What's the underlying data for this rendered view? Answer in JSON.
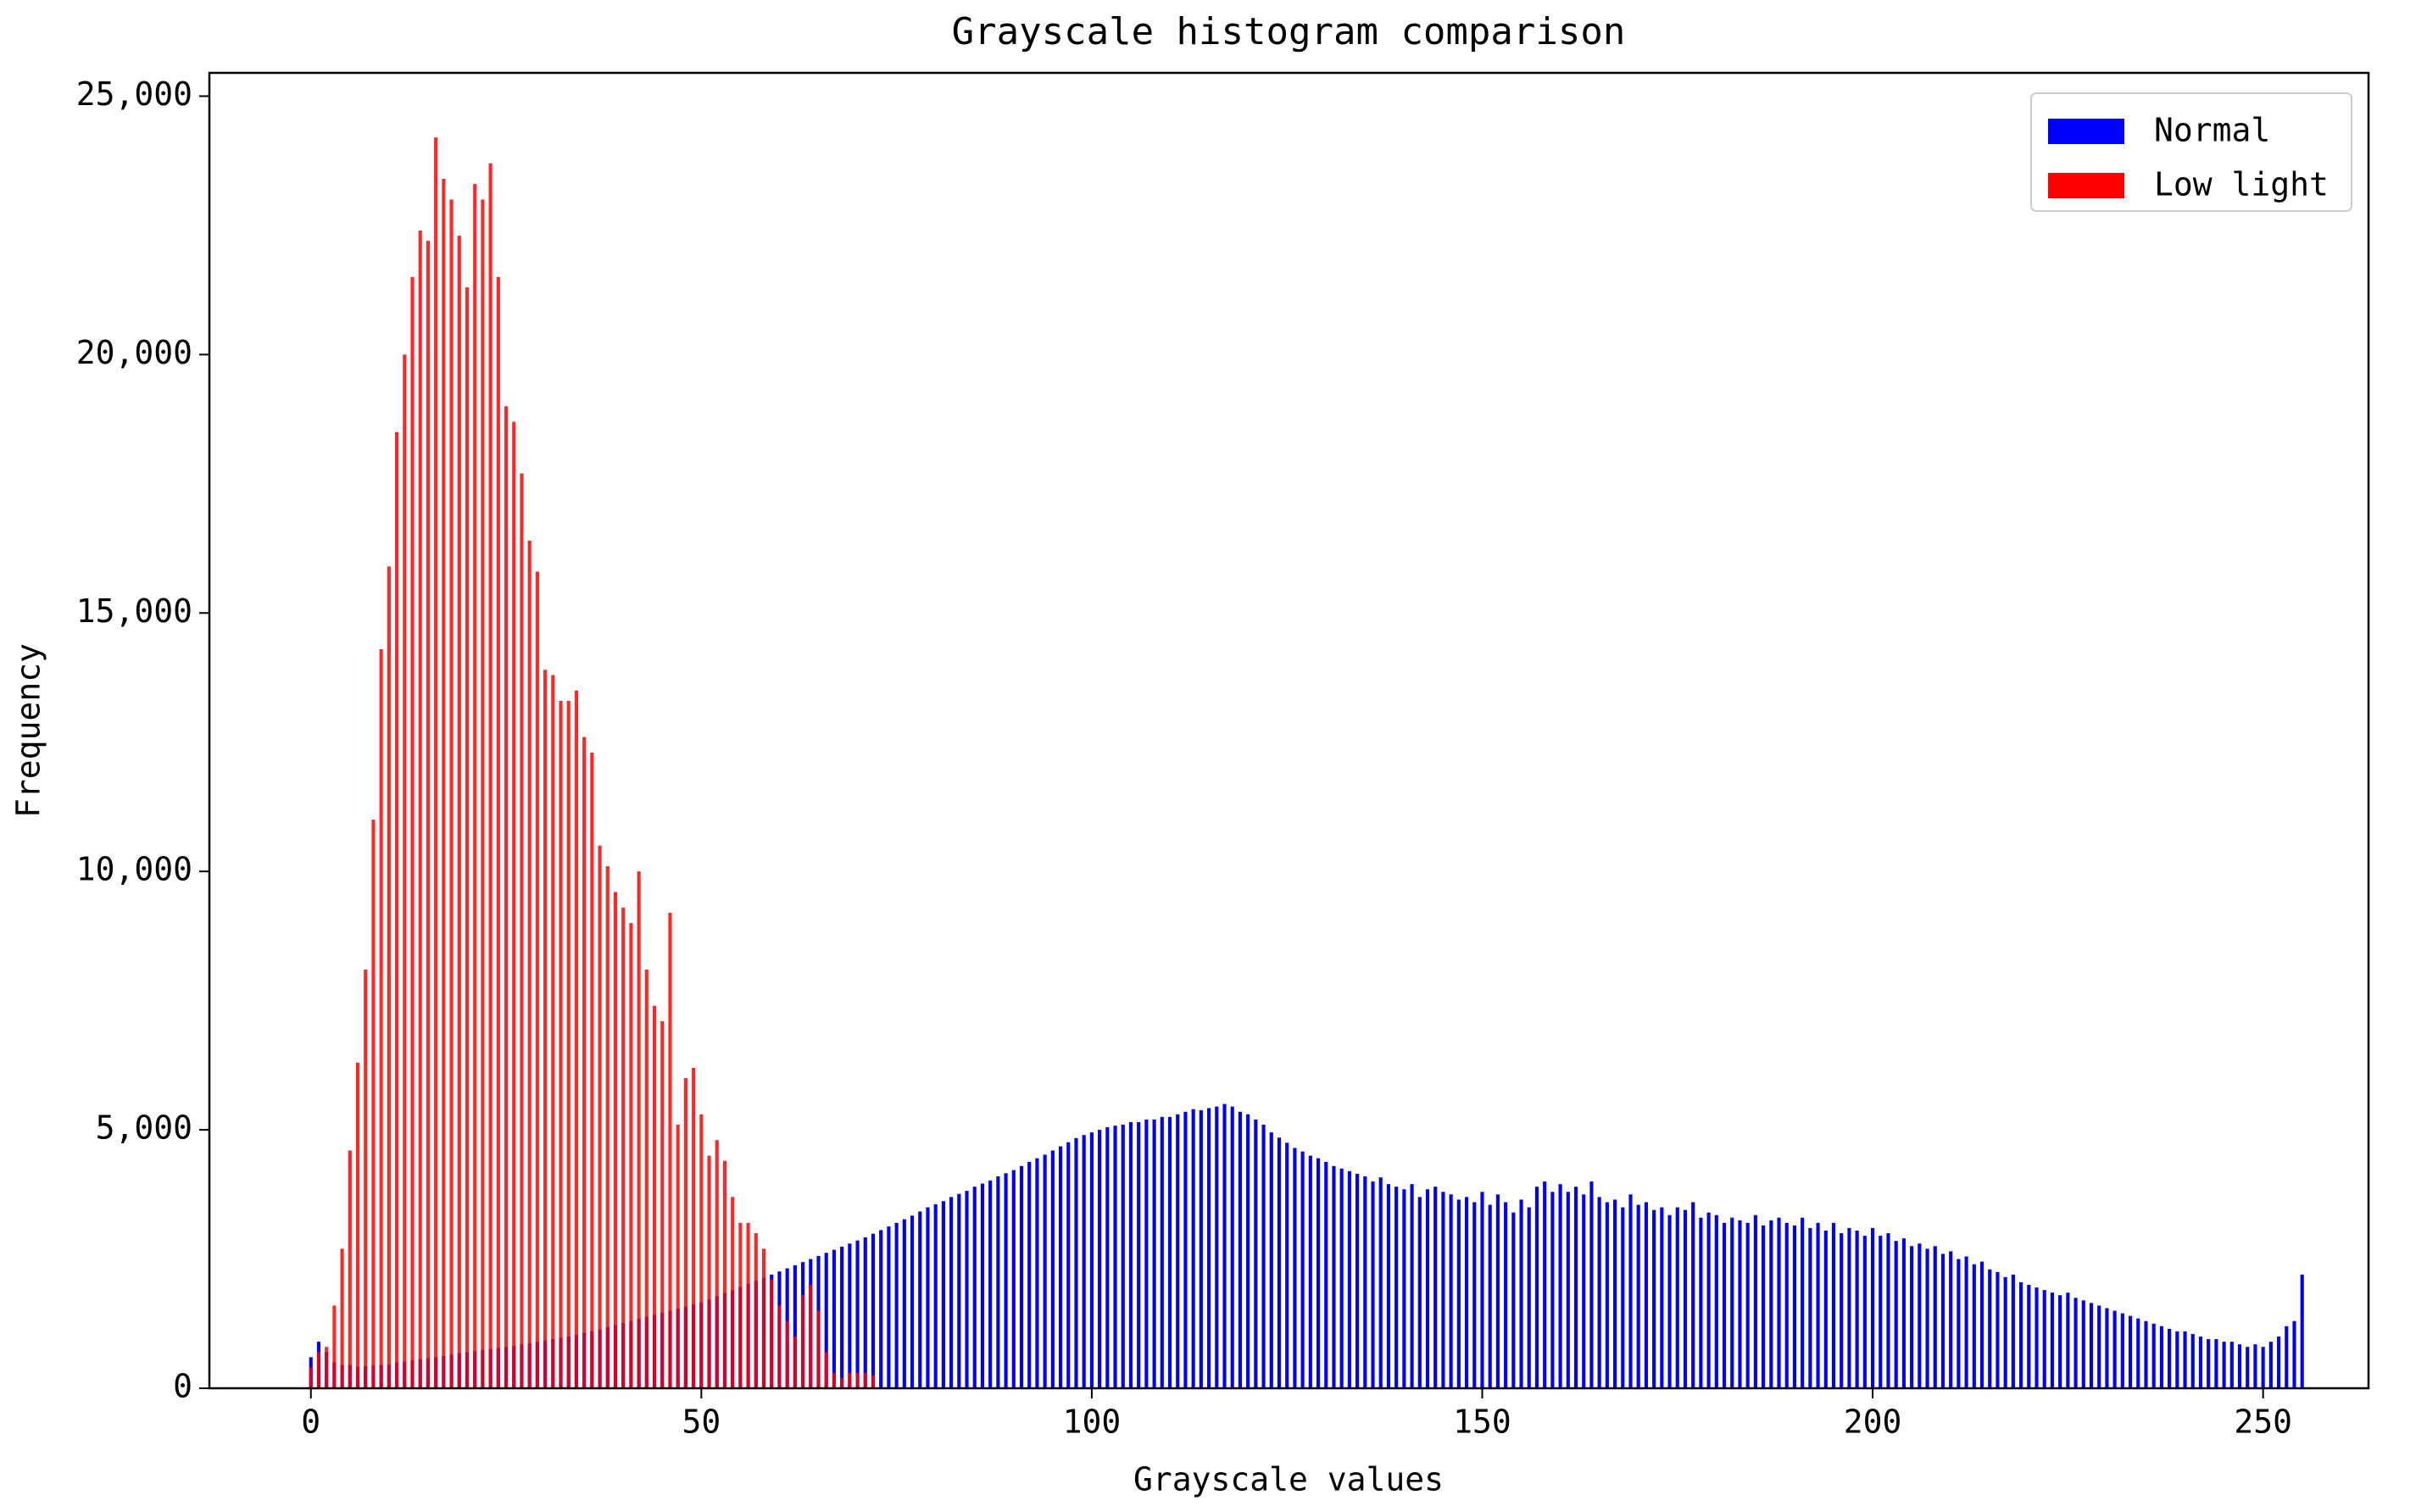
{
  "chart_data": {
    "type": "bar",
    "title": "Grayscale histogram comparison",
    "x_label": "Grayscale values",
    "y_label": "Frequency",
    "x": [
      0,
      1,
      2,
      3,
      4,
      5,
      6,
      7,
      8,
      9,
      10,
      11,
      12,
      13,
      14,
      15,
      16,
      17,
      18,
      19,
      20,
      21,
      22,
      23,
      24,
      25,
      26,
      27,
      28,
      29,
      30,
      31,
      32,
      33,
      34,
      35,
      36,
      37,
      38,
      39,
      40,
      41,
      42,
      43,
      44,
      45,
      46,
      47,
      48,
      49,
      50,
      51,
      52,
      53,
      54,
      55,
      56,
      57,
      58,
      59,
      60,
      61,
      62,
      63,
      64,
      65,
      66,
      67,
      68,
      69,
      70,
      71,
      72,
      73,
      74,
      75,
      76,
      77,
      78,
      79,
      80,
      81,
      82,
      83,
      84,
      85,
      86,
      87,
      88,
      89,
      90,
      91,
      92,
      93,
      94,
      95,
      96,
      97,
      98,
      99,
      100,
      101,
      102,
      103,
      104,
      105,
      106,
      107,
      108,
      109,
      110,
      111,
      112,
      113,
      114,
      115,
      116,
      117,
      118,
      119,
      120,
      121,
      122,
      123,
      124,
      125,
      126,
      127,
      128,
      129,
      130,
      131,
      132,
      133,
      134,
      135,
      136,
      137,
      138,
      139,
      140,
      141,
      142,
      143,
      144,
      145,
      146,
      147,
      148,
      149,
      150,
      151,
      152,
      153,
      154,
      155,
      156,
      157,
      158,
      159,
      160,
      161,
      162,
      163,
      164,
      165,
      166,
      167,
      168,
      169,
      170,
      171,
      172,
      173,
      174,
      175,
      176,
      177,
      178,
      179,
      180,
      181,
      182,
      183,
      184,
      185,
      186,
      187,
      188,
      189,
      190,
      191,
      192,
      193,
      194,
      195,
      196,
      197,
      198,
      199,
      200,
      201,
      202,
      203,
      204,
      205,
      206,
      207,
      208,
      209,
      210,
      211,
      212,
      213,
      214,
      215,
      216,
      217,
      218,
      219,
      220,
      221,
      222,
      223,
      224,
      225,
      226,
      227,
      228,
      229,
      230,
      231,
      232,
      233,
      234,
      235,
      236,
      237,
      238,
      239,
      240,
      241,
      242,
      243,
      244,
      245,
      246,
      247,
      248,
      249,
      250,
      251,
      252,
      253,
      254,
      255
    ],
    "series": [
      {
        "name": "Normal",
        "color": "#0000ff",
        "values": [
          600,
          900,
          700,
          500,
          450,
          450,
          420,
          430,
          440,
          450,
          460,
          500,
          520,
          540,
          560,
          580,
          600,
          620,
          650,
          680,
          700,
          720,
          740,
          760,
          780,
          800,
          820,
          850,
          870,
          900,
          920,
          950,
          980,
          1000,
          1030,
          1070,
          1100,
          1140,
          1180,
          1220,
          1260,
          1300,
          1340,
          1380,
          1420,
          1460,
          1500,
          1540,
          1580,
          1620,
          1660,
          1720,
          1780,
          1840,
          1900,
          1960,
          2020,
          2080,
          2140,
          2200,
          2260,
          2320,
          2380,
          2440,
          2500,
          2560,
          2620,
          2680,
          2740,
          2800,
          2860,
          2920,
          2990,
          3060,
          3130,
          3200,
          3270,
          3340,
          3420,
          3500,
          3560,
          3620,
          3700,
          3760,
          3820,
          3900,
          3960,
          4020,
          4100,
          4160,
          4220,
          4300,
          4380,
          4450,
          4520,
          4600,
          4680,
          4760,
          4840,
          4900,
          4950,
          5000,
          5050,
          5080,
          5100,
          5150,
          5150,
          5200,
          5200,
          5250,
          5250,
          5300,
          5350,
          5400,
          5380,
          5420,
          5450,
          5500,
          5450,
          5350,
          5300,
          5200,
          5100,
          4950,
          4850,
          4750,
          4650,
          4580,
          4500,
          4450,
          4380,
          4300,
          4250,
          4200,
          4150,
          4100,
          4000,
          4080,
          3950,
          3900,
          3850,
          3950,
          3700,
          3850,
          3900,
          3800,
          3750,
          3650,
          3700,
          3600,
          3800,
          3550,
          3750,
          3600,
          3400,
          3650,
          3500,
          3900,
          4000,
          3800,
          3950,
          3800,
          3900,
          3750,
          4000,
          3700,
          3600,
          3650,
          3500,
          3750,
          3550,
          3600,
          3450,
          3500,
          3350,
          3500,
          3450,
          3600,
          3300,
          3400,
          3350,
          3200,
          3300,
          3250,
          3200,
          3350,
          3150,
          3250,
          3300,
          3200,
          3150,
          3300,
          3100,
          3200,
          3050,
          3200,
          3000,
          3100,
          3050,
          2950,
          3100,
          2950,
          3000,
          2850,
          2900,
          2750,
          2800,
          2700,
          2750,
          2600,
          2650,
          2500,
          2550,
          2400,
          2450,
          2300,
          2250,
          2150,
          2200,
          2050,
          2000,
          1950,
          1900,
          1850,
          1800,
          1850,
          1750,
          1700,
          1650,
          1600,
          1550,
          1500,
          1450,
          1400,
          1350,
          1300,
          1250,
          1200,
          1150,
          1100,
          1100,
          1050,
          1000,
          950,
          950,
          900,
          900,
          850,
          800,
          850,
          800,
          900,
          1000,
          1200,
          1300,
          2200
        ]
      },
      {
        "name": "Low light",
        "color": "#ff0000",
        "values": [
          400,
          700,
          800,
          1600,
          2700,
          4600,
          6300,
          8100,
          11000,
          14300,
          15900,
          18500,
          20000,
          21500,
          22400,
          22200,
          24200,
          23400,
          23000,
          22300,
          21300,
          23300,
          23000,
          23700,
          21500,
          19000,
          18700,
          17700,
          16400,
          15800,
          13900,
          13800,
          13300,
          13300,
          13500,
          12600,
          12300,
          10500,
          10100,
          9600,
          9300,
          9000,
          10000,
          8100,
          7400,
          7100,
          9200,
          5100,
          6000,
          6200,
          5300,
          4500,
          4800,
          4400,
          3700,
          3200,
          3200,
          3000,
          2700,
          2100,
          1600,
          1300,
          1000,
          1800,
          2000,
          1500,
          700,
          300,
          200,
          300,
          300,
          300,
          250,
          0,
          0,
          0,
          0,
          0,
          0,
          0,
          0,
          0,
          0,
          0,
          0,
          0,
          0,
          0,
          0,
          0,
          0,
          0,
          0,
          0,
          0,
          0,
          0,
          0,
          0,
          0,
          0,
          0,
          0,
          0,
          0,
          0,
          0,
          0,
          0,
          0,
          0,
          0,
          0,
          0,
          0,
          0,
          0,
          0,
          0,
          0,
          0,
          0,
          0,
          0,
          0,
          0,
          0,
          0,
          0,
          0,
          0,
          0,
          0,
          0,
          0,
          0,
          0,
          0,
          0,
          0,
          0,
          0,
          0,
          0,
          0,
          0,
          0,
          0,
          0,
          0,
          0,
          0,
          0,
          0,
          0,
          0,
          0,
          0,
          0,
          0,
          0,
          0,
          0,
          0,
          0,
          0,
          0,
          0,
          0,
          0,
          0,
          0,
          0,
          0,
          0,
          0,
          0,
          0,
          0,
          0,
          0,
          0,
          0,
          0,
          0,
          0,
          0,
          0,
          0,
          0,
          0,
          0,
          0,
          0,
          0,
          0,
          0,
          0,
          0,
          0,
          0,
          0,
          0,
          0,
          0,
          0,
          0,
          0,
          0,
          0,
          0,
          0,
          0,
          0,
          0,
          0,
          0,
          0,
          0,
          0,
          0,
          0,
          0,
          0,
          0,
          0,
          0,
          0,
          0,
          0,
          0,
          0,
          0,
          0,
          0,
          0,
          0,
          0,
          0,
          0,
          0,
          0,
          0,
          0,
          0,
          0,
          0,
          0,
          0,
          0,
          0,
          0,
          0,
          0,
          0,
          0
        ]
      }
    ],
    "xlim": [
      -13,
      263.5
    ],
    "xticks": [
      0,
      50,
      100,
      150,
      200,
      250
    ],
    "ylim": [
      0,
      25450
    ],
    "yticks": [
      0,
      {
        "value": 5000,
        "label": "5,000"
      },
      {
        "value": 10000,
        "label": "10,000"
      },
      {
        "value": 15000,
        "label": "15,000"
      },
      {
        "value": 20000,
        "label": "20,000"
      },
      {
        "value": 25000,
        "label": "25,000"
      }
    ],
    "bar_width": 0.45,
    "legend": "upper right",
    "grid": false
  }
}
